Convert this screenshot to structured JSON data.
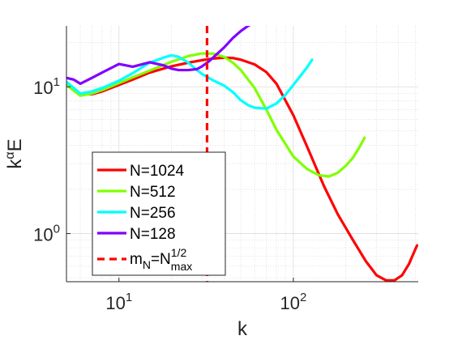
{
  "chart_data": {
    "type": "line",
    "xscale": "log",
    "yscale": "log",
    "xlim": [
      5,
      520
    ],
    "ylim": [
      0.47,
      26
    ],
    "grid": true,
    "grid_minor": true,
    "xlabel": "k",
    "ylabel": "k^αE",
    "ylabel_parts": {
      "base": "k",
      "sup": "α",
      "tail": "E"
    },
    "xticks": [
      {
        "value": 10,
        "base": "10",
        "exp": "1"
      },
      {
        "value": 100,
        "base": "10",
        "exp": "2"
      }
    ],
    "yticks": [
      {
        "value": 1,
        "base": "10",
        "exp": "0"
      },
      {
        "value": 10,
        "base": "10",
        "exp": "1"
      }
    ],
    "legend_position": "bottom-left",
    "series": [
      {
        "name": "N=1024",
        "color": "#ff0000",
        "x": [
          5,
          6,
          7,
          8,
          10,
          12,
          15,
          20,
          25,
          30,
          35,
          40,
          45,
          50,
          60,
          70,
          80,
          100,
          120,
          150,
          180,
          220,
          260,
          300,
          340,
          380,
          420,
          460,
          500,
          512
        ],
        "y": [
          10.5,
          8.9,
          8.9,
          9.3,
          10.3,
          11.2,
          12.5,
          13.8,
          14.6,
          15.2,
          15.6,
          15.8,
          15.7,
          15.3,
          14.2,
          12.6,
          10.5,
          6.4,
          3.9,
          2.1,
          1.35,
          0.9,
          0.65,
          0.52,
          0.48,
          0.48,
          0.52,
          0.62,
          0.78,
          0.83
        ]
      },
      {
        "name": "N=512",
        "color": "#80ff00",
        "x": [
          5,
          6,
          7,
          8,
          10,
          12,
          15,
          20,
          25,
          30,
          35,
          40,
          45,
          50,
          60,
          70,
          80,
          100,
          120,
          140,
          160,
          180,
          200,
          220,
          240,
          256
        ],
        "y": [
          10.3,
          8.7,
          9.0,
          9.5,
          10.6,
          11.6,
          12.9,
          14.8,
          16.2,
          16.9,
          16.8,
          16.0,
          14.6,
          13.0,
          9.8,
          7.0,
          5.1,
          3.35,
          2.75,
          2.5,
          2.45,
          2.6,
          2.9,
          3.3,
          3.9,
          4.5
        ]
      },
      {
        "name": "N=256",
        "color": "#00ffff",
        "x": [
          5,
          6,
          7,
          8,
          10,
          12,
          15,
          18,
          20,
          22,
          25,
          28,
          30,
          35,
          40,
          45,
          50,
          55,
          60,
          70,
          80,
          90,
          100,
          110,
          120,
          128
        ],
        "y": [
          10.8,
          9.0,
          9.3,
          9.8,
          11.0,
          12.4,
          14.6,
          15.8,
          16.4,
          16.0,
          14.6,
          13.0,
          12.2,
          11.0,
          10.2,
          9.2,
          8.1,
          7.5,
          7.2,
          7.1,
          7.7,
          8.8,
          10.3,
          11.9,
          13.6,
          15.3
        ]
      },
      {
        "name": "N=128",
        "color": "#8000ff",
        "x": [
          5,
          5.5,
          6,
          7,
          8,
          10,
          12,
          15,
          18,
          20,
          22,
          25,
          28,
          30,
          33,
          36,
          40,
          45,
          50,
          55,
          60,
          64
        ],
        "y": [
          11.5,
          11.2,
          10.5,
          11.5,
          12.5,
          14.3,
          13.7,
          14.7,
          14.0,
          13.3,
          13.0,
          13.0,
          13.2,
          13.8,
          15.0,
          16.5,
          18.5,
          21.5,
          24.0,
          26.0,
          27.5,
          28.0
        ]
      }
    ],
    "vline": {
      "name": "m_N=N^{1/2}_{max}",
      "color": "#ff0000",
      "style": "dashed",
      "x": 32,
      "label_parts": {
        "a": "m",
        "a_sub": "N",
        "eq": "=N",
        "sup": "1/2",
        "sub": "max"
      }
    }
  }
}
